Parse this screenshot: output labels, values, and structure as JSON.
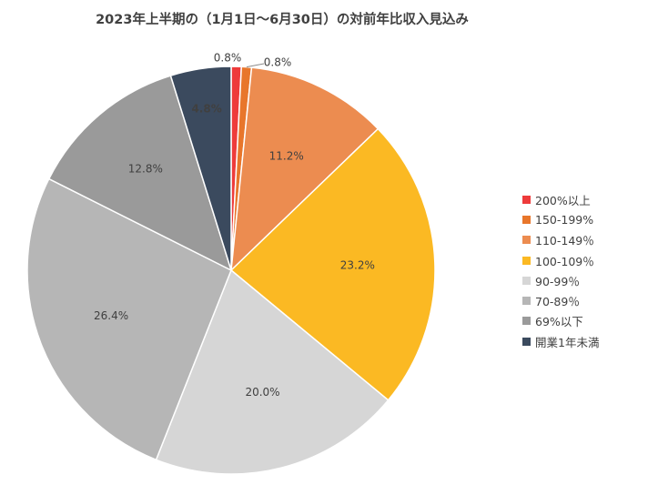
{
  "chart_data": {
    "type": "pie",
    "title": "2023年上半期の（1月1日〜6月30日）の対前年比収入見込み",
    "categories": [
      "200%以上",
      "150-199%",
      "110-149％",
      "100-109％",
      "90-99％",
      "70-89％",
      "69%以下",
      "開業1年未満"
    ],
    "values": [
      0.8,
      0.8,
      11.2,
      23.2,
      20.0,
      26.4,
      12.8,
      4.8
    ],
    "data_labels": [
      "0.8%",
      "0.8%",
      "11.2%",
      "23.2%",
      "20.0%",
      "26.4%",
      "12.8%",
      "4.8%"
    ],
    "colors": [
      "#ee3b3b",
      "#e8762b",
      "#ec8c50",
      "#fbb923",
      "#d6d6d6",
      "#b6b6b6",
      "#9a9a9a",
      "#3b4a5e"
    ],
    "legend_position": "right",
    "start_angle": "12 o'clock",
    "direction": "clockwise"
  }
}
